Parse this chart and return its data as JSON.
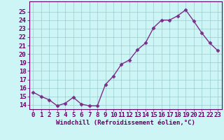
{
  "x": [
    0,
    1,
    2,
    3,
    4,
    5,
    6,
    7,
    8,
    9,
    10,
    11,
    12,
    13,
    14,
    15,
    16,
    17,
    18,
    19,
    20,
    21,
    22,
    23
  ],
  "y": [
    15.5,
    15.0,
    14.6,
    13.9,
    14.2,
    14.9,
    14.1,
    13.9,
    13.9,
    16.4,
    17.4,
    18.8,
    19.3,
    20.5,
    21.3,
    23.1,
    24.0,
    24.0,
    24.5,
    25.2,
    23.9,
    22.5,
    21.3,
    20.4
  ],
  "line_color": "#7B2D8B",
  "marker": "D",
  "marker_size": 2.5,
  "line_width": 1.0,
  "background_color": "#cef5f5",
  "grid_color": "#99cccc",
  "xlabel": "Windchill (Refroidissement éolien,°C)",
  "xlabel_fontsize": 6.5,
  "xtick_labels": [
    "0",
    "1",
    "2",
    "3",
    "4",
    "5",
    "6",
    "7",
    "8",
    "9",
    "10",
    "11",
    "12",
    "13",
    "14",
    "15",
    "16",
    "17",
    "18",
    "19",
    "20",
    "21",
    "22",
    "23"
  ],
  "ytick_min": 14,
  "ytick_max": 25,
  "ylim": [
    13.5,
    26.2
  ],
  "xlim": [
    -0.5,
    23.5
  ],
  "tick_fontsize": 6.5,
  "tick_color": "#660066",
  "spine_color": "#660066"
}
